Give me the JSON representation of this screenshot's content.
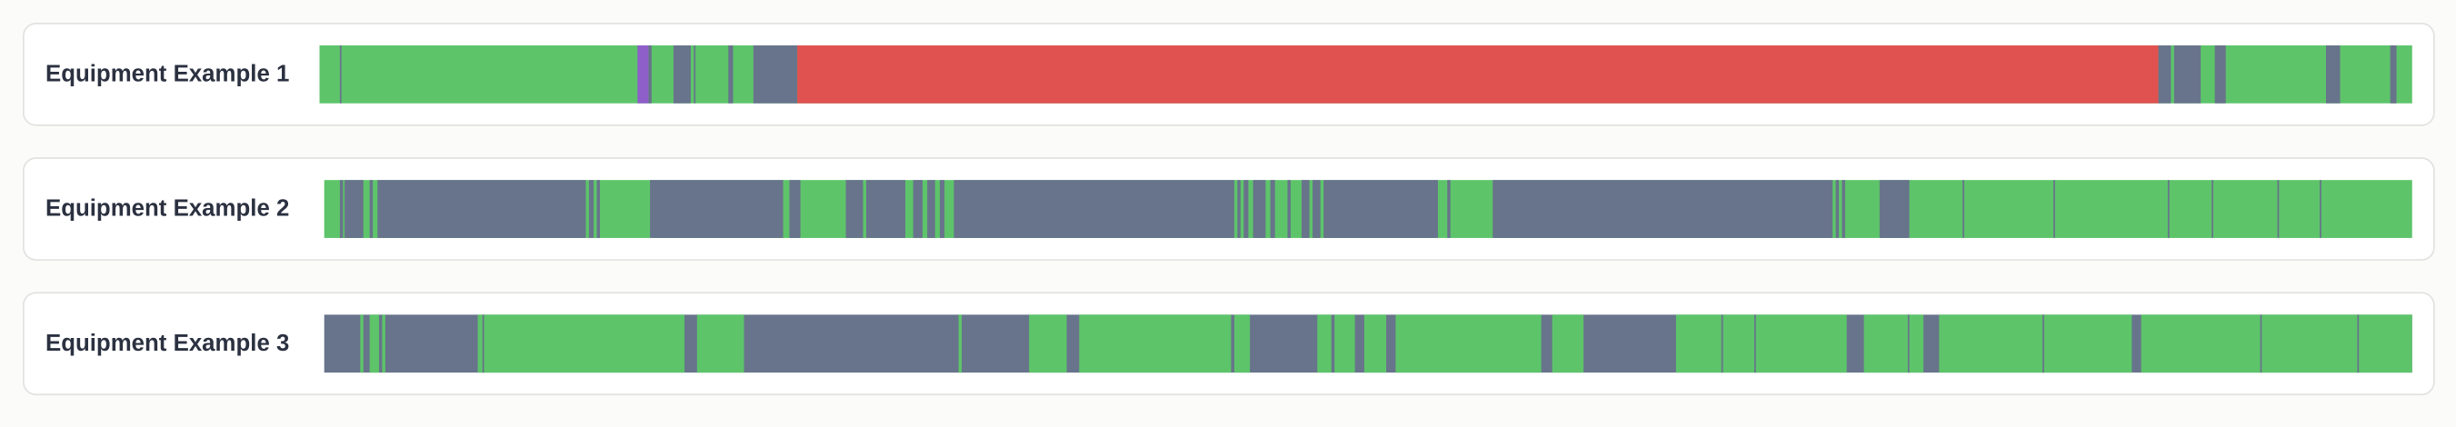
{
  "rows": [
    {
      "label": "Equipment Example 1"
    },
    {
      "label": "Equipment Example 2"
    },
    {
      "label": "Equipment Example 3"
    }
  ]
}
